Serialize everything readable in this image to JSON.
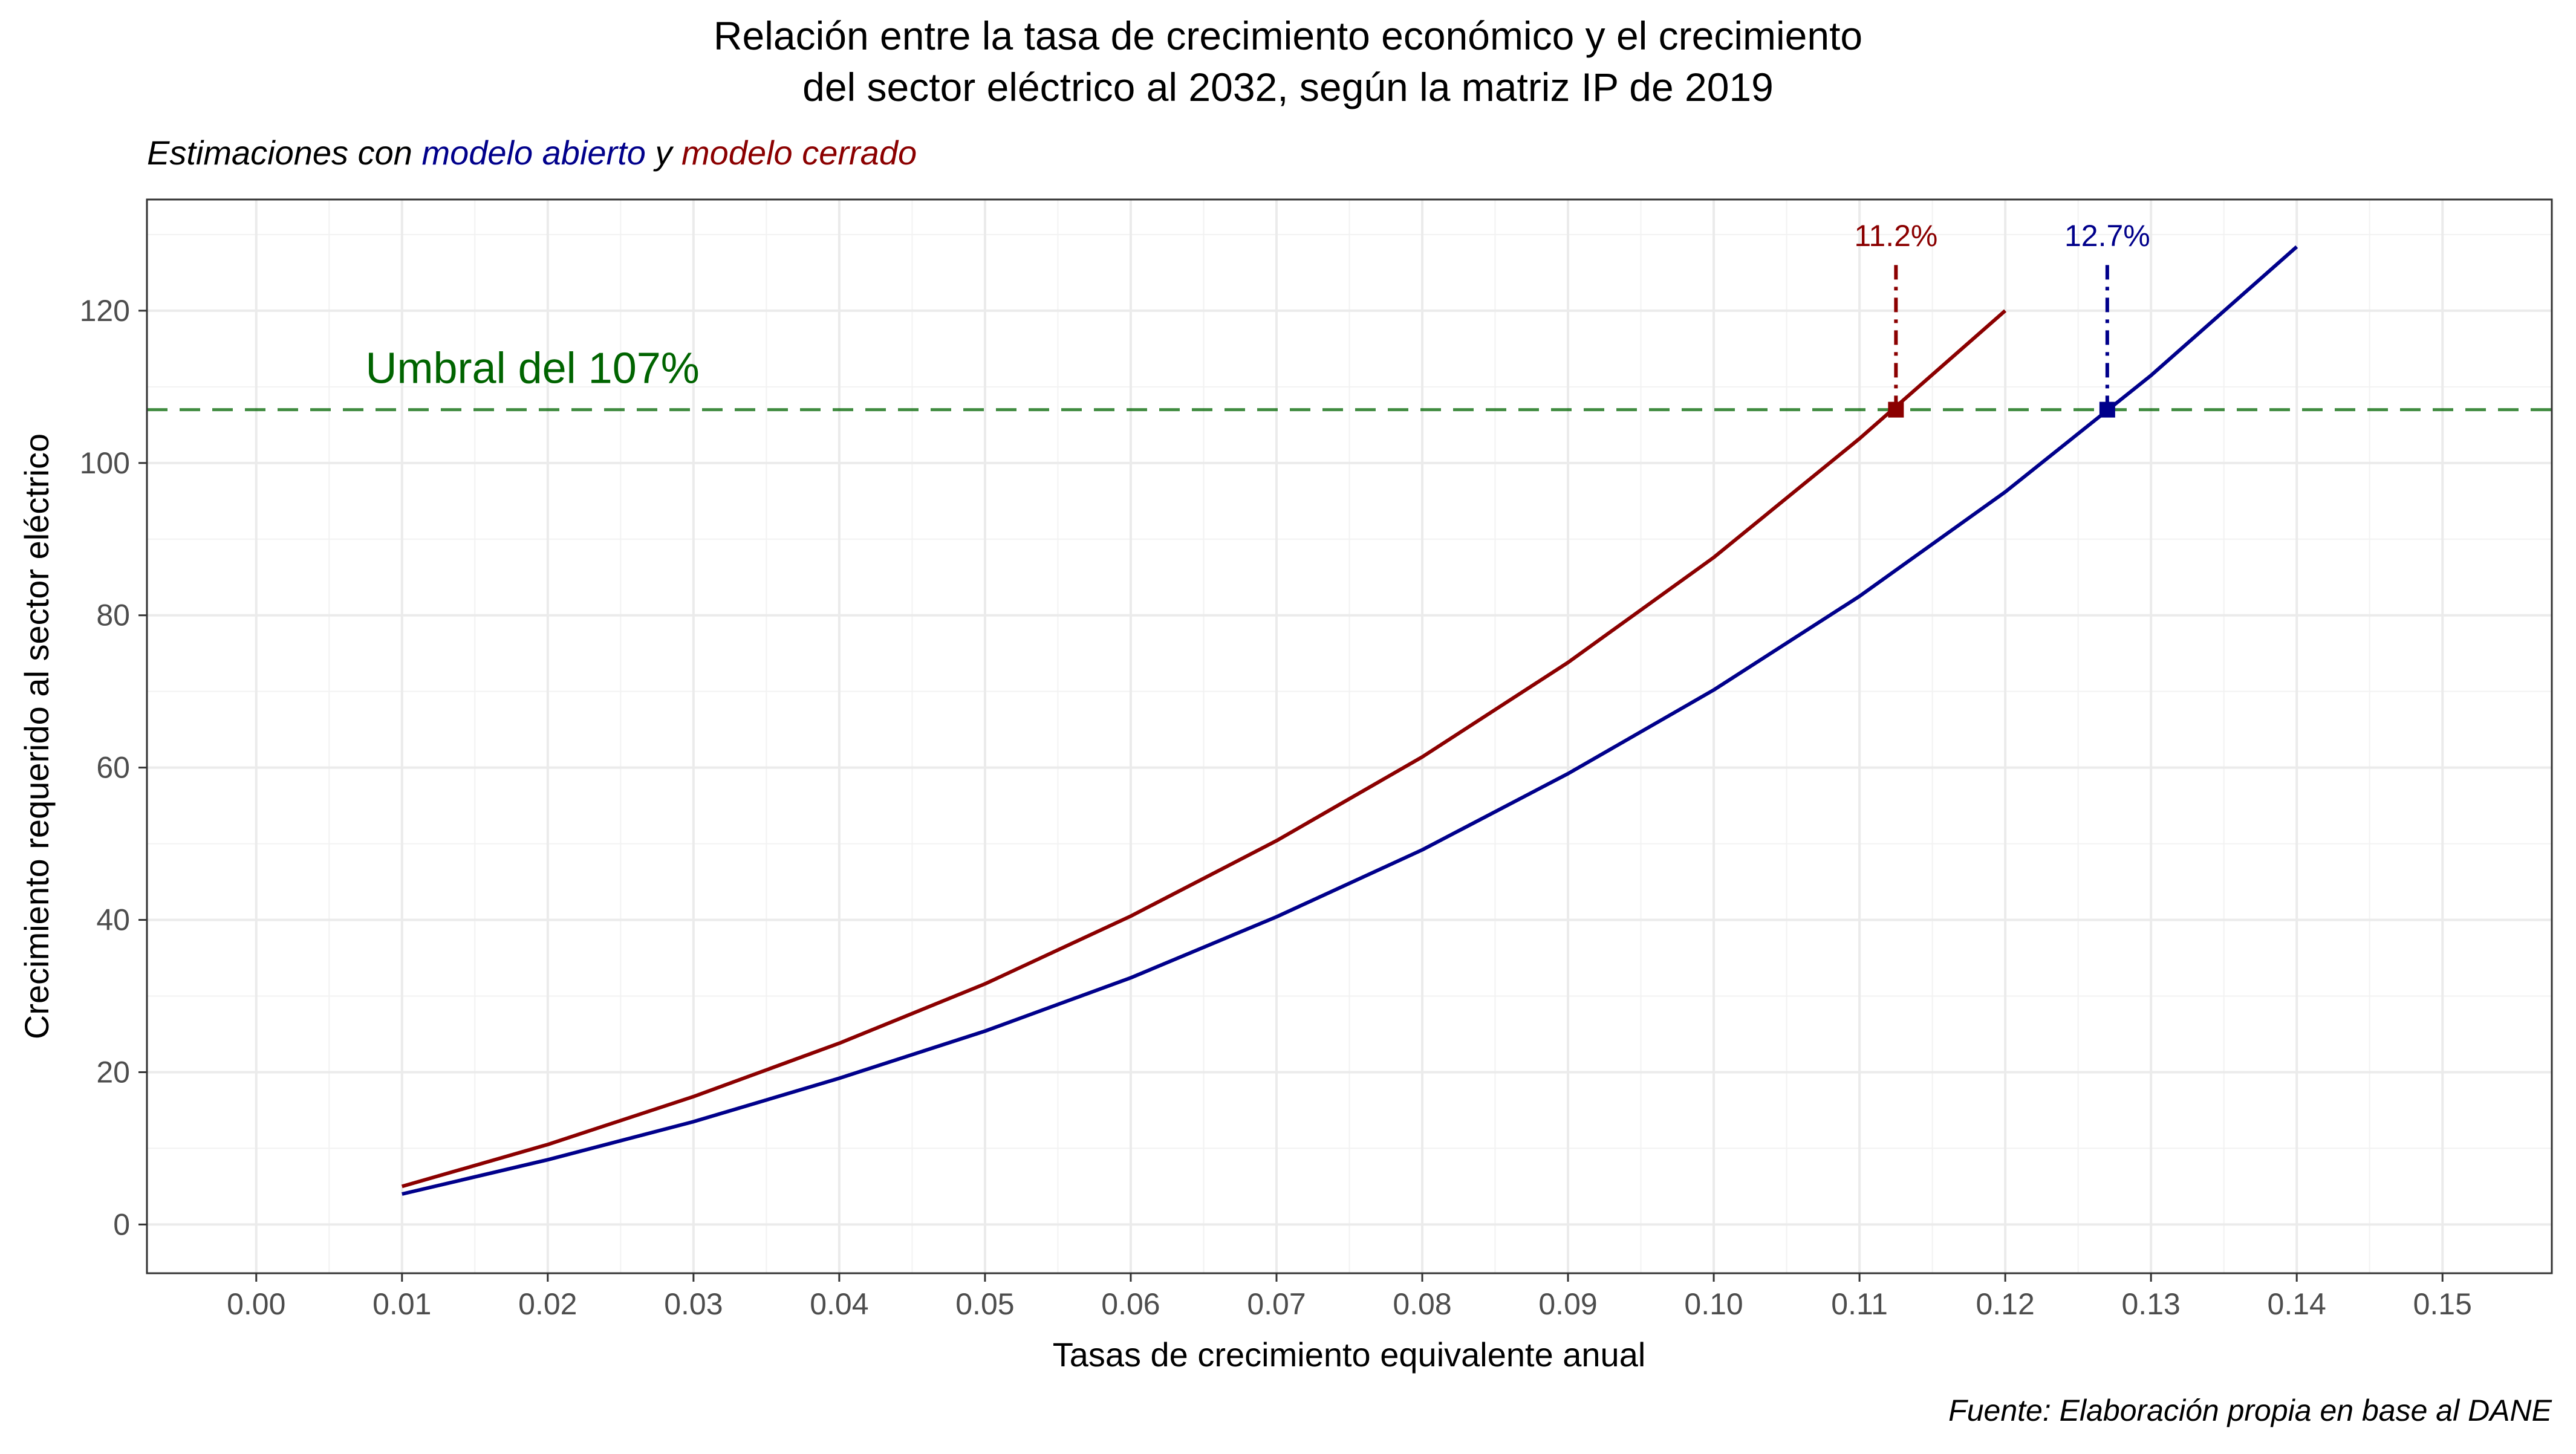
{
  "chart_data": {
    "type": "line",
    "title_line1": "Relación entre la tasa de crecimiento económico y el crecimiento",
    "title_line2": "del sector eléctrico al 2032, según la matriz IP de 2019",
    "subtitle": {
      "prefix": "Estimaciones con ",
      "open_label": "modelo abierto",
      "connector": " y ",
      "closed_label": "modelo cerrado"
    },
    "xlabel": "Tasas de crecimiento equivalente anual",
    "ylabel": "Crecimiento requerido al sector eléctrico",
    "caption": "Fuente: Elaboración propia en base al DANE",
    "xlim": [
      -0.0075,
      0.1575
    ],
    "ylim": [
      -6.4,
      134.6
    ],
    "x_ticks": [
      "0.00",
      "0.01",
      "0.02",
      "0.03",
      "0.04",
      "0.05",
      "0.06",
      "0.07",
      "0.08",
      "0.09",
      "0.10",
      "0.11",
      "0.12",
      "0.13",
      "0.14",
      "0.15"
    ],
    "y_ticks": [
      "0",
      "20",
      "40",
      "60",
      "80",
      "100",
      "120"
    ],
    "grid": true,
    "series": [
      {
        "name": "modelo abierto",
        "color": "#00008B",
        "x": [
          0.01,
          0.02,
          0.03,
          0.04,
          0.05,
          0.06,
          0.07,
          0.08,
          0.09,
          0.1,
          0.11,
          0.12,
          0.13,
          0.14
        ],
        "y": [
          4.0,
          8.5,
          13.5,
          19.2,
          25.4,
          32.4,
          40.4,
          49.2,
          59.2,
          70.2,
          82.5,
          96.2,
          111.5,
          128.4
        ]
      },
      {
        "name": "modelo cerrado",
        "color": "#8B0000",
        "x": [
          0.01,
          0.02,
          0.03,
          0.04,
          0.05,
          0.06,
          0.07,
          0.08,
          0.09,
          0.1,
          0.11,
          0.12
        ],
        "y": [
          5.0,
          10.5,
          16.8,
          23.8,
          31.6,
          40.5,
          50.4,
          61.4,
          73.8,
          87.6,
          103.2,
          120.0
        ]
      }
    ],
    "threshold": {
      "y": 107,
      "label": "Umbral del 107%",
      "color": "#006400"
    },
    "markers": [
      {
        "x": 0.1125,
        "y": 107,
        "label": "11.2%",
        "color": "#8B0000"
      },
      {
        "x": 0.127,
        "y": 107,
        "label": "12.7%",
        "color": "#00008B"
      }
    ]
  }
}
